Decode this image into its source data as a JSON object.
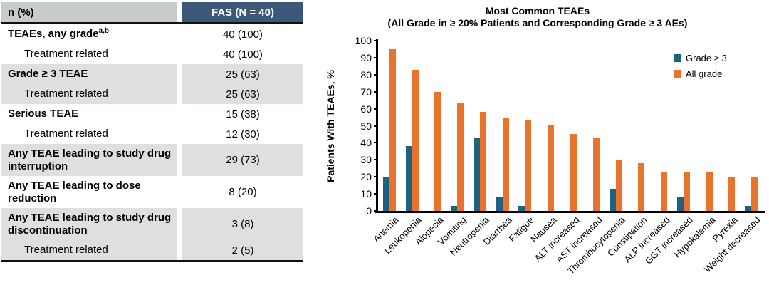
{
  "colors": {
    "table_header_left_fill": "#C8CCC8",
    "table_header_right_fill": "#3B5878",
    "table_header_right_text": "#FFFFFF",
    "table_row_shaded": "#DDE0DC",
    "bar_grade3": "#1E6282",
    "bar_allgrade": "#E9732D",
    "axis": "#000000"
  },
  "table": {
    "header": {
      "metric": "n (%)",
      "fas": "FAS (N = 40)"
    },
    "rows": [
      {
        "label": "TEAEs, any grade",
        "sup": "a,b",
        "value": "40 (100)",
        "bold": true,
        "indent": false,
        "shaded": false,
        "tall": false
      },
      {
        "label": "Treatment related",
        "sup": "",
        "value": "40 (100)",
        "bold": false,
        "indent": true,
        "shaded": false,
        "tall": false
      },
      {
        "label": "Grade ≥ 3 TEAE",
        "sup": "",
        "value": "25 (63)",
        "bold": true,
        "indent": false,
        "shaded": true,
        "tall": false
      },
      {
        "label": "Treatment related",
        "sup": "",
        "value": "25 (63)",
        "bold": false,
        "indent": true,
        "shaded": true,
        "tall": false
      },
      {
        "label": "Serious TEAE",
        "sup": "",
        "value": "15 (38)",
        "bold": true,
        "indent": false,
        "shaded": false,
        "tall": false
      },
      {
        "label": "Treatment related",
        "sup": "",
        "value": "12 (30)",
        "bold": false,
        "indent": true,
        "shaded": false,
        "tall": false
      },
      {
        "label": "Any TEAE leading to study drug interruption",
        "sup": "",
        "value": "29 (73)",
        "bold": true,
        "indent": false,
        "shaded": true,
        "tall": true
      },
      {
        "label": "Any TEAE leading to dose reduction",
        "sup": "",
        "value": "8 (20)",
        "bold": true,
        "indent": false,
        "shaded": false,
        "tall": true
      },
      {
        "label": "Any TEAE leading to study drug discontinuation",
        "sup": "",
        "value": "3 (8)",
        "bold": true,
        "indent": false,
        "shaded": true,
        "tall": true
      },
      {
        "label": "Treatment related",
        "sup": "",
        "value": "2 (5)",
        "bold": false,
        "indent": true,
        "shaded": true,
        "tall": false
      }
    ]
  },
  "chart_data": {
    "type": "bar",
    "title": "Most Common TEAEs",
    "subtitle": "(All Grade in ≥ 20% Patients and Corresponding Grade ≥ 3 AEs)",
    "ylabel": "Patients With TEAEs, %",
    "xlabel": "",
    "ylim": [
      0,
      100
    ],
    "ytick_step": 10,
    "grid": false,
    "legend_position": "top-right",
    "categories": [
      "Anemia",
      "Leukopenia",
      "Alopecia",
      "Vomiting",
      "Neutropenia",
      "Diarrhea",
      "Fatigue",
      "Nausea",
      "ALT increased",
      "AST increased",
      "Thrombocytopenia",
      "Constipation",
      "ALP increased",
      "GGT increased",
      "Hypokalemia",
      "Pyrexia",
      "Weight decreased"
    ],
    "series": [
      {
        "name": "Grade ≥ 3",
        "color": "#1E6282",
        "values": [
          20,
          38,
          0,
          3,
          43,
          8,
          3,
          0,
          0,
          0,
          13,
          0,
          0,
          8,
          0,
          0,
          3
        ]
      },
      {
        "name": "All grade",
        "color": "#E9732D",
        "values": [
          95,
          83,
          70,
          63,
          58,
          55,
          53,
          50,
          45,
          43,
          30,
          28,
          23,
          23,
          23,
          20,
          20
        ]
      }
    ]
  }
}
